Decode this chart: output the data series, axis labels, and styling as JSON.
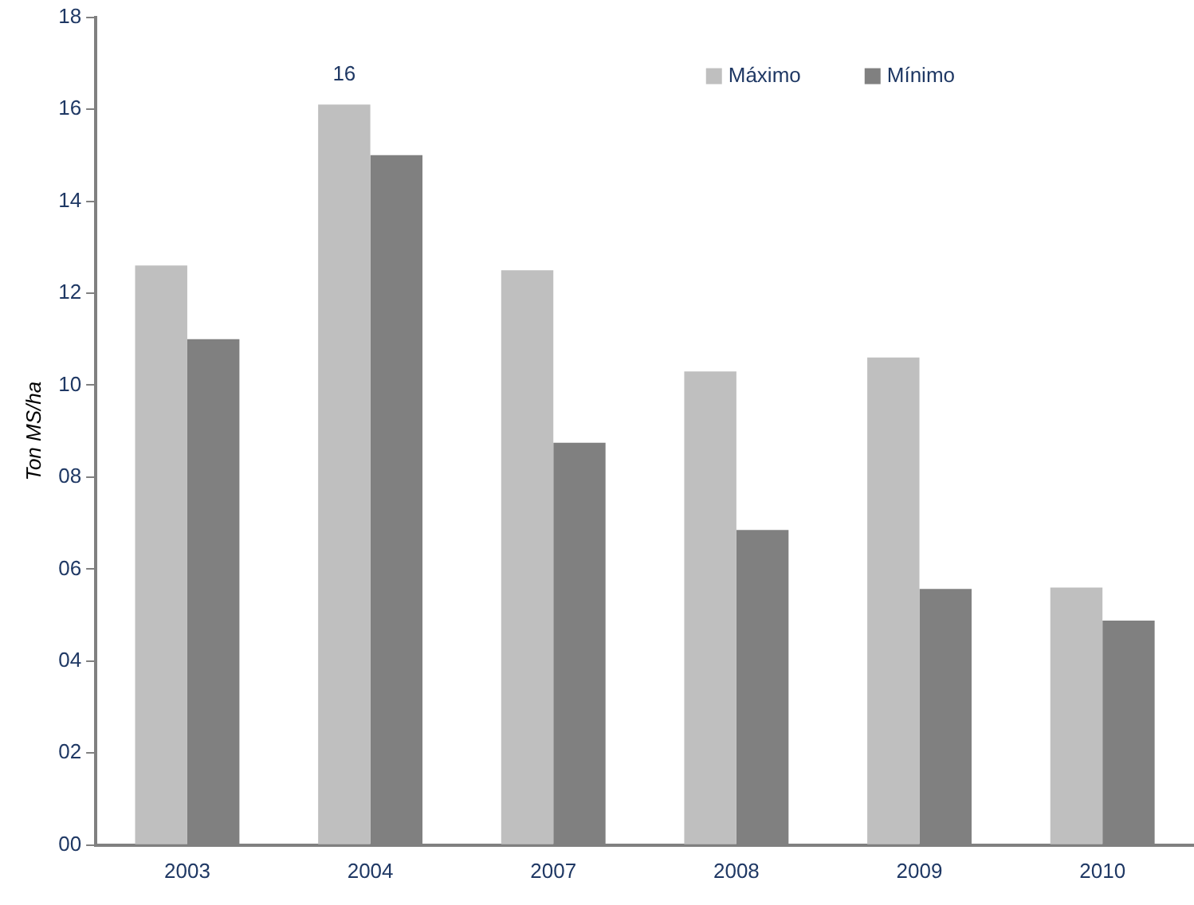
{
  "chart_data": {
    "type": "bar",
    "ylabel": "Ton MS/ha",
    "categories": [
      "2003",
      "2004",
      "2007",
      "2008",
      "2009",
      "2010"
    ],
    "series": [
      {
        "name": "Máximo",
        "color": "#bfbfbf",
        "values": [
          12.6,
          16.1,
          12.5,
          10.3,
          10.6,
          5.6
        ],
        "value_labels": [
          null,
          "16",
          null,
          null,
          null,
          null
        ]
      },
      {
        "name": "Mínimo",
        "color": "#808080",
        "values": [
          11.0,
          15.0,
          8.75,
          6.85,
          5.57,
          4.88
        ]
      }
    ],
    "ylim": [
      0,
      18
    ],
    "yticks": [
      {
        "value": 0,
        "label": "00"
      },
      {
        "value": 2,
        "label": "02"
      },
      {
        "value": 4,
        "label": "04"
      },
      {
        "value": 6,
        "label": "06"
      },
      {
        "value": 8,
        "label": "08"
      },
      {
        "value": 10,
        "label": "10"
      },
      {
        "value": 12,
        "label": "12"
      },
      {
        "value": 14,
        "label": "14"
      },
      {
        "value": 16,
        "label": "16"
      },
      {
        "value": 18,
        "label": "18"
      }
    ],
    "grid": false,
    "legend": "top right"
  }
}
